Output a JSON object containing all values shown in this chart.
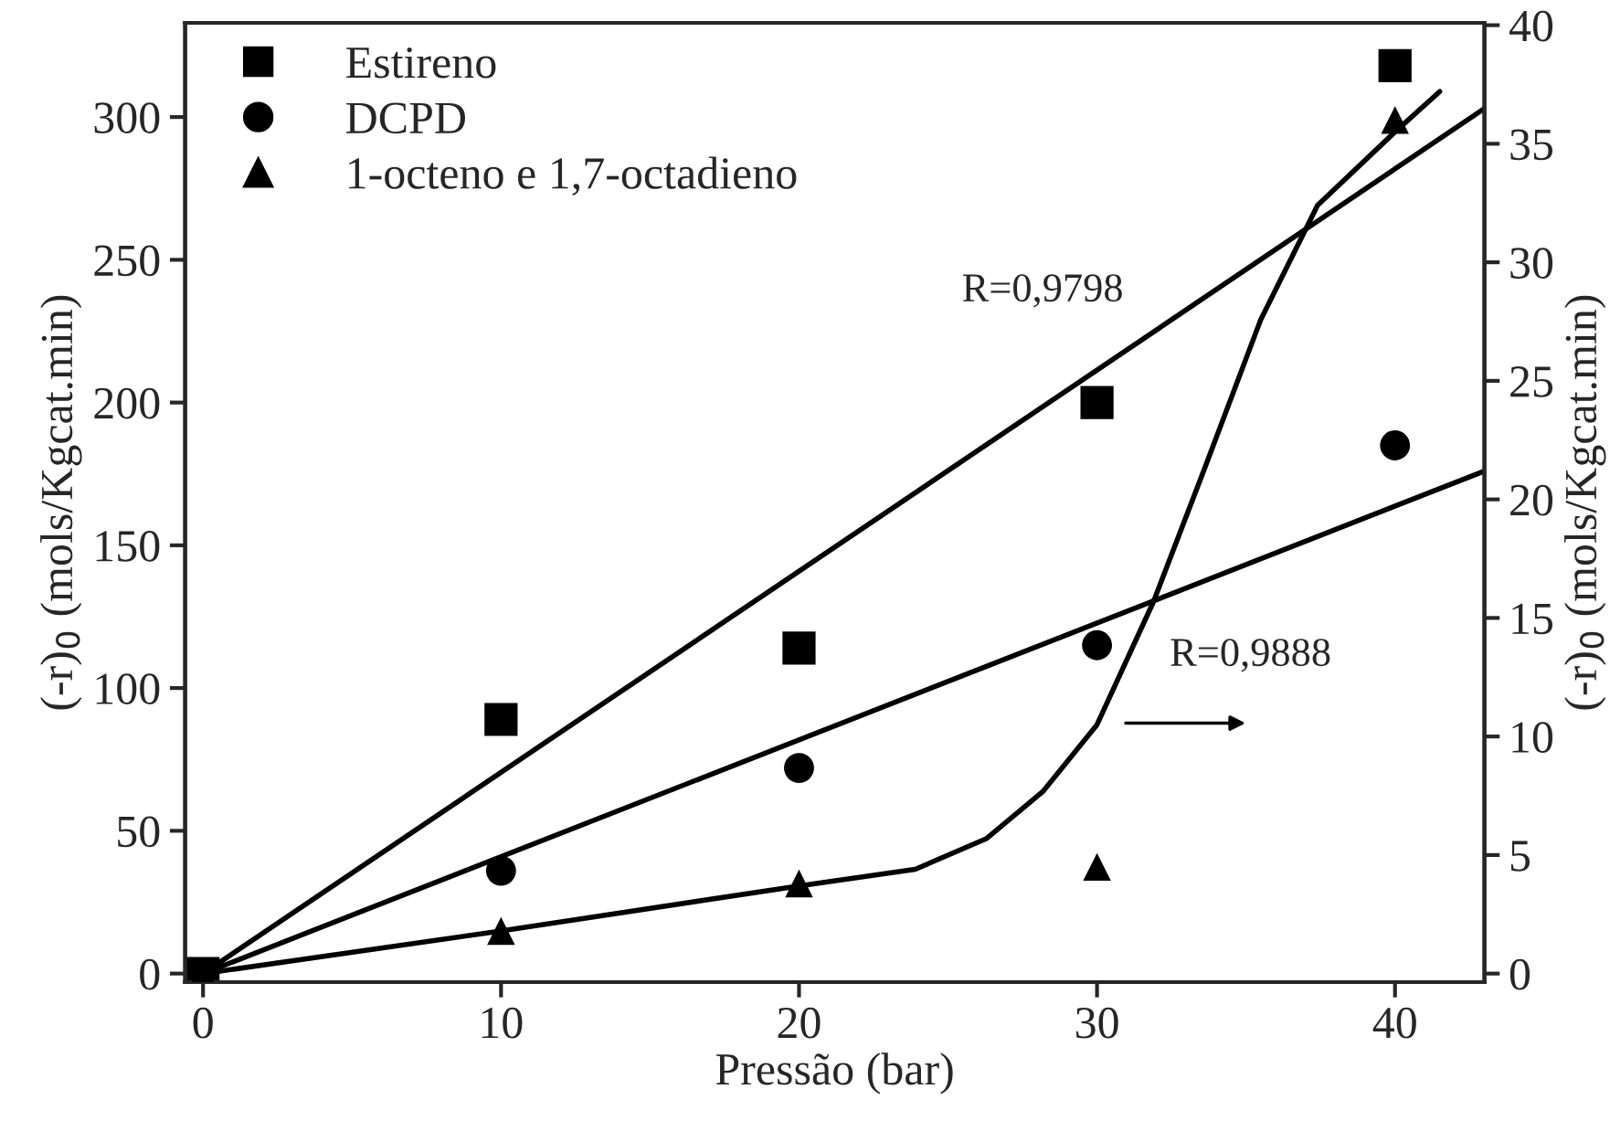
{
  "chart_data": {
    "type": "scatter",
    "xlabel": "Pressão (bar)",
    "ylabel": "(-r)$_{0}$ (mols/Kgcat.min)",
    "y2label": "(-r)$_{0}$ (mols/Kgcat.min)",
    "xlim": [
      -0.6,
      43
    ],
    "xticks": [
      0,
      10,
      20,
      30,
      40
    ],
    "ylim": [
      -3,
      333
    ],
    "yticks": [
      0,
      50,
      100,
      150,
      200,
      250,
      300
    ],
    "y2lim": [
      -0.36,
      40.1
    ],
    "y2ticks": [
      0,
      5,
      10,
      15,
      20,
      25,
      30,
      35,
      40
    ],
    "legend": "top left",
    "grid": false,
    "series": [
      {
        "name": "Estireno",
        "marker": "square",
        "color": "#000000",
        "x": [
          0,
          10,
          20,
          30,
          40
        ],
        "values": [
          0,
          89,
          114,
          200,
          318
        ]
      },
      {
        "name": "DCPD",
        "marker": "circle",
        "color": "#000000",
        "x": [
          10,
          20,
          30,
          40
        ],
        "values": [
          36,
          72,
          115,
          185
        ]
      },
      {
        "name": "1-octeno e 1,7-octadieno",
        "marker": "triangle",
        "color": "#000000",
        "axis": "y2",
        "x": [
          0,
          10,
          20,
          30,
          40
        ],
        "values": [
          0,
          1.8,
          3.8,
          4.5,
          36
        ]
      },
      {
        "type": "line",
        "color": "#000000",
        "x": [
          0,
          43
        ],
        "values": [
          0,
          303
        ]
      },
      {
        "type": "line",
        "color": "#000000",
        "x": [
          0,
          43
        ],
        "values": [
          0,
          176
        ]
      },
      {
        "type": "line",
        "color": "#000000",
        "axis": "y2",
        "x": [
          0,
          10,
          20,
          23.9,
          26.3,
          28.2,
          30,
          31.9,
          33.7,
          35.5,
          37.4,
          40,
          41.5
        ],
        "values": [
          0,
          1.8,
          3.7,
          4.4,
          5.7,
          7.7,
          10.5,
          15.7,
          21.6,
          27.6,
          32.4,
          35.5,
          37.2
        ]
      }
    ],
    "annotations": [
      "R=0,9798",
      "R=0,9888"
    ]
  }
}
